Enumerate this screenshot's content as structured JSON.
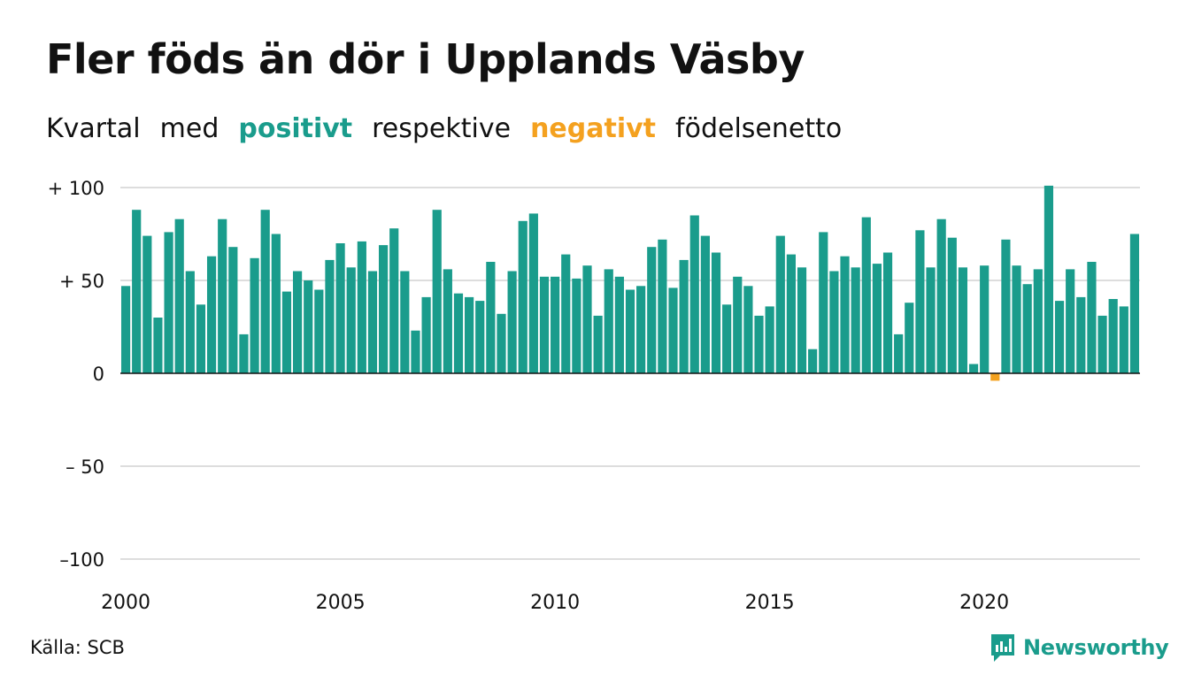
{
  "title": "Fler föds än dör i Upplands Väsby",
  "subtitle": {
    "parts": [
      "Kvartal",
      "med",
      "positivt",
      "respektive",
      "negativt",
      "födelsenetto"
    ]
  },
  "source": "Källa: SCB",
  "brand": "Newsworthy",
  "colors": {
    "positive": "#1a9c8c",
    "negative": "#f4a11f",
    "grid": "#dddddd",
    "zero_line": "#111111",
    "text": "#111111"
  },
  "chart_data": {
    "type": "bar",
    "title": "Fler föds än dör i Upplands Väsby",
    "xlabel": "",
    "ylabel": "",
    "ylim": [
      -100,
      100
    ],
    "y_ticks": [
      {
        "value": 100,
        "label": "+ 100"
      },
      {
        "value": 50,
        "label": "+  50"
      },
      {
        "value": 0,
        "label": "0"
      },
      {
        "value": -50,
        "label": "– 50"
      },
      {
        "value": -100,
        "label": "–100"
      }
    ],
    "x_ticks": [
      {
        "value": 2000,
        "label": "2000"
      },
      {
        "value": 2005,
        "label": "2005"
      },
      {
        "value": 2010,
        "label": "2010"
      },
      {
        "value": 2015,
        "label": "2015"
      },
      {
        "value": 2020,
        "label": "2020"
      }
    ],
    "grid": true,
    "first_quarter": "2000-Q1",
    "values": [
      47,
      88,
      74,
      30,
      76,
      83,
      55,
      37,
      63,
      83,
      68,
      21,
      62,
      88,
      75,
      44,
      55,
      50,
      45,
      61,
      70,
      57,
      71,
      55,
      69,
      78,
      55,
      23,
      41,
      88,
      56,
      43,
      41,
      39,
      60,
      32,
      55,
      82,
      86,
      52,
      52,
      64,
      51,
      58,
      31,
      56,
      52,
      45,
      47,
      68,
      72,
      46,
      61,
      85,
      74,
      65,
      37,
      52,
      47,
      31,
      36,
      74,
      64,
      57,
      13,
      76,
      55,
      63,
      57,
      84,
      59,
      65,
      21,
      38,
      77,
      57,
      83,
      73,
      57,
      5,
      58,
      -4,
      72,
      58,
      48,
      56,
      101,
      39,
      56,
      41,
      60,
      31,
      40,
      36,
      75
    ]
  }
}
